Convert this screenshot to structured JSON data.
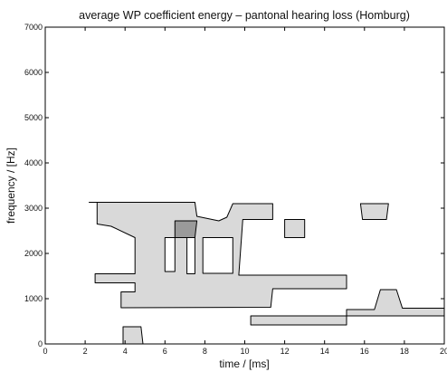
{
  "chart_data": {
    "type": "heatmap",
    "title": "average WP coefficient energy – pantonal hearing loss (Homburg)",
    "xlabel": "time / [ms]",
    "ylabel": "frequency / [Hz]",
    "xlim": [
      0,
      20
    ],
    "ylim": [
      0,
      7000
    ],
    "x_ticks": [
      0,
      2,
      4,
      6,
      8,
      10,
      12,
      14,
      16,
      18,
      20
    ],
    "y_ticks": [
      0,
      1000,
      2000,
      3000,
      4000,
      5000,
      6000,
      7000
    ],
    "grid": false,
    "levels": [
      {
        "name": "background",
        "color": "#ffffff"
      },
      {
        "name": "medium",
        "color": "#d9d9d9"
      },
      {
        "name": "high",
        "color": "#9a9a9a"
      }
    ],
    "regions": [
      {
        "level": "medium",
        "polygon": [
          [
            2.2,
            3130
          ],
          [
            7.5,
            3130
          ],
          [
            7.6,
            2820
          ],
          [
            8.7,
            2720
          ],
          [
            9.1,
            2800
          ],
          [
            9.4,
            3100
          ],
          [
            11.4,
            3100
          ],
          [
            11.4,
            2750
          ],
          [
            9.9,
            2750
          ],
          [
            9.7,
            1520
          ],
          [
            15.1,
            1520
          ],
          [
            15.1,
            1220
          ],
          [
            11.4,
            1220
          ],
          [
            11.3,
            810
          ],
          [
            3.8,
            800
          ],
          [
            3.8,
            1150
          ],
          [
            4.5,
            1150
          ],
          [
            4.5,
            1350
          ],
          [
            2.5,
            1350
          ],
          [
            2.5,
            1550
          ],
          [
            4.5,
            1550
          ],
          [
            4.5,
            2350
          ],
          [
            3.3,
            2600
          ],
          [
            2.6,
            2650
          ],
          [
            2.6,
            3130
          ]
        ]
      },
      {
        "level": "high",
        "polygon": [
          [
            6.5,
            2350
          ],
          [
            7.5,
            2350
          ],
          [
            7.6,
            2720
          ],
          [
            6.5,
            2720
          ]
        ]
      },
      {
        "level": "medium",
        "polygon": [
          [
            12.0,
            2750
          ],
          [
            13.0,
            2750
          ],
          [
            13.0,
            2350
          ],
          [
            12.0,
            2350
          ]
        ]
      },
      {
        "level": "medium",
        "polygon": [
          [
            15.8,
            3100
          ],
          [
            17.2,
            3100
          ],
          [
            17.1,
            2750
          ],
          [
            15.9,
            2750
          ]
        ]
      },
      {
        "level": "medium",
        "polygon": [
          [
            10.3,
            620
          ],
          [
            15.1,
            620
          ],
          [
            15.1,
            420
          ],
          [
            10.3,
            420
          ]
        ]
      },
      {
        "level": "medium",
        "polygon": [
          [
            15.1,
            760
          ],
          [
            16.5,
            760
          ],
          [
            16.8,
            1200
          ],
          [
            17.6,
            1200
          ],
          [
            17.9,
            790
          ],
          [
            20.0,
            790
          ],
          [
            20.0,
            620
          ],
          [
            15.1,
            620
          ]
        ]
      },
      {
        "level": "medium",
        "polygon": [
          [
            3.9,
            380
          ],
          [
            4.8,
            380
          ],
          [
            4.9,
            0
          ],
          [
            3.9,
            0
          ]
        ]
      }
    ],
    "holes": [
      {
        "polygon": [
          [
            6.0,
            2350
          ],
          [
            6.5,
            2350
          ],
          [
            6.5,
            1600
          ],
          [
            6.0,
            1600
          ]
        ]
      },
      {
        "polygon": [
          [
            7.1,
            2350
          ],
          [
            7.5,
            2350
          ],
          [
            7.5,
            1550
          ],
          [
            7.1,
            1550
          ]
        ]
      },
      {
        "polygon": [
          [
            7.9,
            2350
          ],
          [
            9.4,
            2350
          ],
          [
            9.4,
            1560
          ],
          [
            7.9,
            1560
          ]
        ]
      }
    ]
  }
}
